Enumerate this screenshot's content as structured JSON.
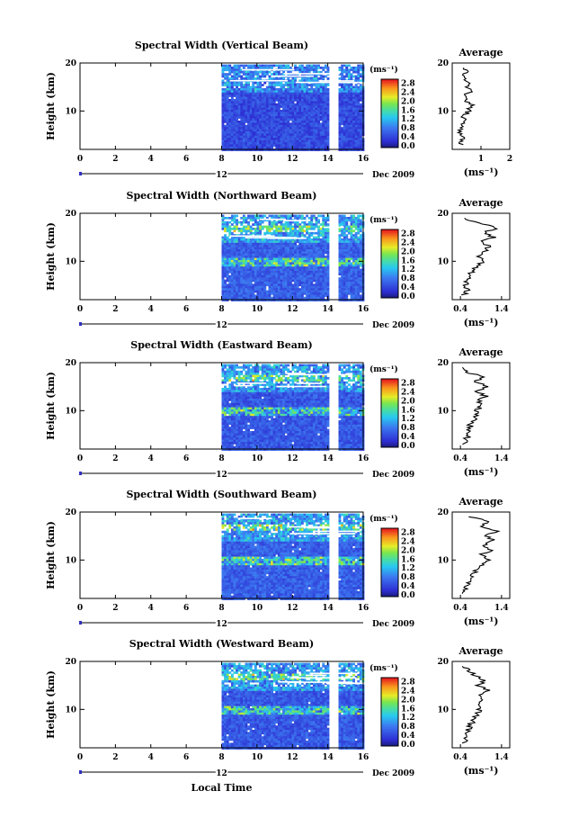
{
  "figure": {
    "xlabel": "Local Time",
    "ylabel": "Height (km)",
    "date_label": "Dec 2009",
    "day_marker": "12",
    "colorbar_unit": "(ms⁻¹)",
    "average_title": "Average",
    "average_xlabel": "(ms⁻¹)"
  },
  "chart_data": [
    {
      "type": "heatmap",
      "title": "Spectral Width (Vertical Beam)",
      "beam": "vertical",
      "xlim": [
        0,
        16
      ],
      "ylim": [
        2,
        20
      ],
      "xticks": [
        0,
        2,
        4,
        6,
        8,
        10,
        12,
        14,
        16
      ],
      "xtick_labels": [
        "0",
        "2",
        "4",
        "6",
        "8",
        "10",
        "12",
        "14",
        "16"
      ],
      "yticks": [
        10,
        20
      ],
      "ytick_labels": [
        "10",
        "20"
      ],
      "data_start_hour": 8.0,
      "gap_hours": [
        14.2,
        14.6
      ],
      "colorbar_ticks": [
        0.0,
        0.4,
        0.8,
        1.2,
        1.6,
        2.0,
        2.4,
        2.8
      ],
      "colorbar_labels": [
        "0.0",
        "0.4",
        "0.8",
        "1.2",
        "1.6",
        "2.0",
        "2.4",
        "2.8"
      ],
      "base_width": 0.45,
      "average": {
        "xlim": [
          0,
          2
        ],
        "xticks": [
          1,
          2
        ],
        "xtick_labels": [
          "1",
          "2"
        ],
        "height_km": [
          3,
          4,
          5,
          6,
          7,
          8,
          9,
          10,
          11,
          12,
          13,
          14,
          15,
          16,
          17,
          18,
          19
        ],
        "width_ms": [
          0.3,
          0.35,
          0.3,
          0.3,
          0.4,
          0.35,
          0.45,
          0.55,
          0.7,
          0.5,
          0.45,
          0.6,
          0.5,
          0.55,
          0.35,
          0.5,
          0.4
        ]
      }
    },
    {
      "type": "heatmap",
      "title": "Spectral Width (Northward Beam)",
      "beam": "north",
      "xlim": [
        0,
        16
      ],
      "ylim": [
        2,
        20
      ],
      "xticks": [
        0,
        2,
        4,
        6,
        8,
        10,
        12,
        14,
        16
      ],
      "xtick_labels": [
        "0",
        "2",
        "4",
        "6",
        "8",
        "10",
        "12",
        "14",
        "16"
      ],
      "yticks": [
        10,
        20
      ],
      "ytick_labels": [
        "10",
        "20"
      ],
      "data_start_hour": 8.0,
      "gap_hours": [
        14.2,
        14.6
      ],
      "colorbar_ticks": [
        0.0,
        0.4,
        0.8,
        1.2,
        1.6,
        2.0,
        2.4,
        2.8
      ],
      "colorbar_labels": [
        "0.0",
        "0.4",
        "0.8",
        "1.2",
        "1.6",
        "2.0",
        "2.4",
        "2.8"
      ],
      "base_width": 0.6,
      "average": {
        "xlim": [
          0.2,
          1.6
        ],
        "xticks": [
          0.4,
          1.4
        ],
        "xtick_labels": [
          "0.4",
          "1.4"
        ],
        "height_km": [
          3,
          4,
          5,
          6,
          7,
          8,
          9,
          10,
          11,
          12,
          13,
          14,
          15,
          16,
          17,
          18,
          19
        ],
        "width_ms": [
          0.5,
          0.55,
          0.5,
          0.55,
          0.6,
          0.7,
          0.8,
          1.0,
          0.85,
          0.95,
          1.1,
          0.9,
          1.2,
          0.95,
          1.3,
          0.8,
          0.5
        ]
      }
    },
    {
      "type": "heatmap",
      "title": "Spectral Width (Eastward Beam)",
      "beam": "east",
      "xlim": [
        0,
        16
      ],
      "ylim": [
        2,
        20
      ],
      "xticks": [
        0,
        2,
        4,
        6,
        8,
        10,
        12,
        14,
        16
      ],
      "xtick_labels": [
        "0",
        "2",
        "4",
        "6",
        "8",
        "10",
        "12",
        "14",
        "16"
      ],
      "yticks": [
        10,
        20
      ],
      "ytick_labels": [
        "10",
        "20"
      ],
      "data_start_hour": 8.0,
      "gap_hours": [
        14.2,
        14.6
      ],
      "colorbar_ticks": [
        0.0,
        0.4,
        0.8,
        1.2,
        1.6,
        2.0,
        2.4,
        2.8
      ],
      "colorbar_labels": [
        "0.0",
        "0.4",
        "0.8",
        "1.2",
        "1.6",
        "2.0",
        "2.4",
        "2.8"
      ],
      "base_width": 0.55,
      "average": {
        "xlim": [
          0.2,
          1.6
        ],
        "xticks": [
          0.4,
          1.4
        ],
        "xtick_labels": [
          "0.4",
          "1.4"
        ],
        "height_km": [
          3,
          4,
          5,
          6,
          7,
          8,
          9,
          10,
          11,
          12,
          13,
          14,
          15,
          16,
          17,
          18,
          19
        ],
        "width_ms": [
          0.5,
          0.55,
          0.6,
          0.6,
          0.65,
          0.75,
          0.8,
          0.75,
          0.95,
          0.85,
          1.0,
          0.8,
          1.05,
          0.75,
          0.9,
          0.6,
          0.45
        ]
      }
    },
    {
      "type": "heatmap",
      "title": "Spectral Width (Southward Beam)",
      "beam": "south",
      "xlim": [
        0,
        16
      ],
      "ylim": [
        2,
        20
      ],
      "xticks": [
        0,
        2,
        4,
        6,
        8,
        10,
        12,
        14,
        16
      ],
      "xtick_labels": [
        "0",
        "2",
        "4",
        "6",
        "8",
        "10",
        "12",
        "14",
        "16"
      ],
      "yticks": [
        10,
        20
      ],
      "ytick_labels": [
        "10",
        "20"
      ],
      "data_start_hour": 8.0,
      "gap_hours": [
        14.2,
        14.6
      ],
      "colorbar_ticks": [
        0.0,
        0.4,
        0.8,
        1.2,
        1.6,
        2.0,
        2.4,
        2.8
      ],
      "colorbar_labels": [
        "0.0",
        "0.4",
        "0.8",
        "1.2",
        "1.6",
        "2.0",
        "2.4",
        "2.8"
      ],
      "base_width": 0.6,
      "average": {
        "xlim": [
          0.2,
          1.6
        ],
        "xticks": [
          0.4,
          1.4
        ],
        "xtick_labels": [
          "0.4",
          "1.4"
        ],
        "height_km": [
          3,
          4,
          5,
          6,
          7,
          8,
          9,
          10,
          11,
          12,
          13,
          14,
          15,
          16,
          17,
          18,
          19
        ],
        "width_ms": [
          0.5,
          0.5,
          0.55,
          0.6,
          0.7,
          0.8,
          0.95,
          1.05,
          0.9,
          1.1,
          1.0,
          1.2,
          1.0,
          1.3,
          0.9,
          1.1,
          0.6
        ]
      }
    },
    {
      "type": "heatmap",
      "title": "Spectral Width (Westward Beam)",
      "beam": "west",
      "xlim": [
        0,
        16
      ],
      "ylim": [
        2,
        20
      ],
      "xticks": [
        0,
        2,
        4,
        6,
        8,
        10,
        12,
        14,
        16
      ],
      "xtick_labels": [
        "0",
        "2",
        "4",
        "6",
        "8",
        "10",
        "12",
        "14",
        "16"
      ],
      "yticks": [
        10,
        20
      ],
      "ytick_labels": [
        "10",
        "20"
      ],
      "data_start_hour": 8.0,
      "gap_hours": [
        14.2,
        14.6
      ],
      "colorbar_ticks": [
        0.0,
        0.4,
        0.8,
        1.2,
        1.6,
        2.0,
        2.4,
        2.8
      ],
      "colorbar_labels": [
        "0.0",
        "0.4",
        "0.8",
        "1.2",
        "1.6",
        "2.0",
        "2.4",
        "2.8"
      ],
      "base_width": 0.55,
      "average": {
        "xlim": [
          0.2,
          1.6
        ],
        "xticks": [
          0.4,
          1.4
        ],
        "xtick_labels": [
          "0.4",
          "1.4"
        ],
        "height_km": [
          3,
          4,
          5,
          6,
          7,
          8,
          9,
          10,
          11,
          12,
          13,
          14,
          15,
          16,
          17,
          18,
          19
        ],
        "width_ms": [
          0.5,
          0.55,
          0.55,
          0.6,
          0.65,
          0.75,
          0.8,
          0.85,
          0.8,
          0.95,
          0.9,
          1.1,
          0.85,
          1.0,
          0.8,
          0.6,
          0.45
        ]
      }
    }
  ]
}
